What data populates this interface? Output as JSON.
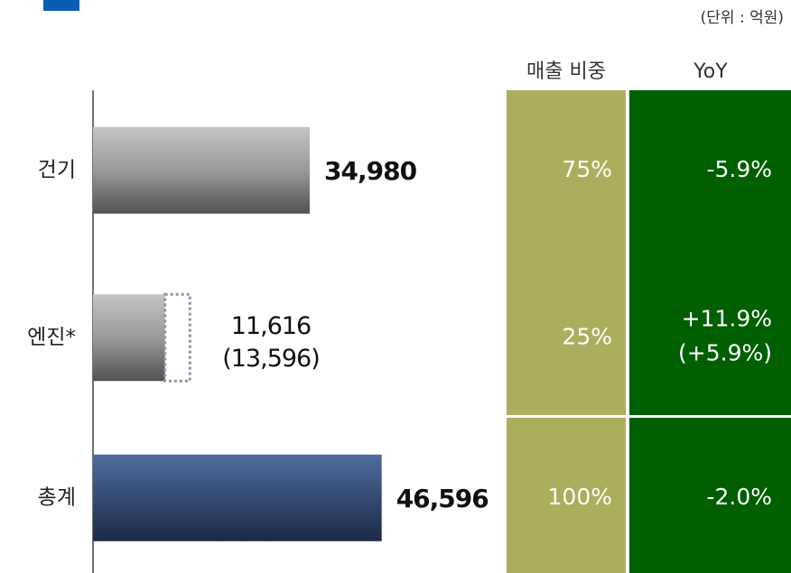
{
  "chart_data": {
    "type": "bar",
    "unit_note": "(단위 : 억원)",
    "columns": [
      "매출 비중",
      "YoY"
    ],
    "categories": [
      "건기",
      "엔진*",
      "총계"
    ],
    "values": [
      34980,
      11616,
      46596
    ],
    "value_labels": [
      "34,980",
      "11,616",
      "46,596"
    ],
    "secondary": {
      "values": [
        null,
        13596,
        null
      ],
      "value_labels": [
        null,
        "(13,596)",
        null
      ]
    },
    "share": {
      "values": [
        75,
        25,
        100
      ],
      "value_labels": [
        "75%",
        "25%",
        "100%"
      ]
    },
    "yoy": {
      "values": [
        -5.9,
        11.9,
        -2.0
      ],
      "value_labels": [
        "-5.9%",
        "+11.9%",
        "-2.0%"
      ]
    },
    "yoy_sub": {
      "values": [
        null,
        5.9,
        null
      ],
      "value_labels": [
        null,
        "(+5.9%)",
        null
      ]
    }
  }
}
